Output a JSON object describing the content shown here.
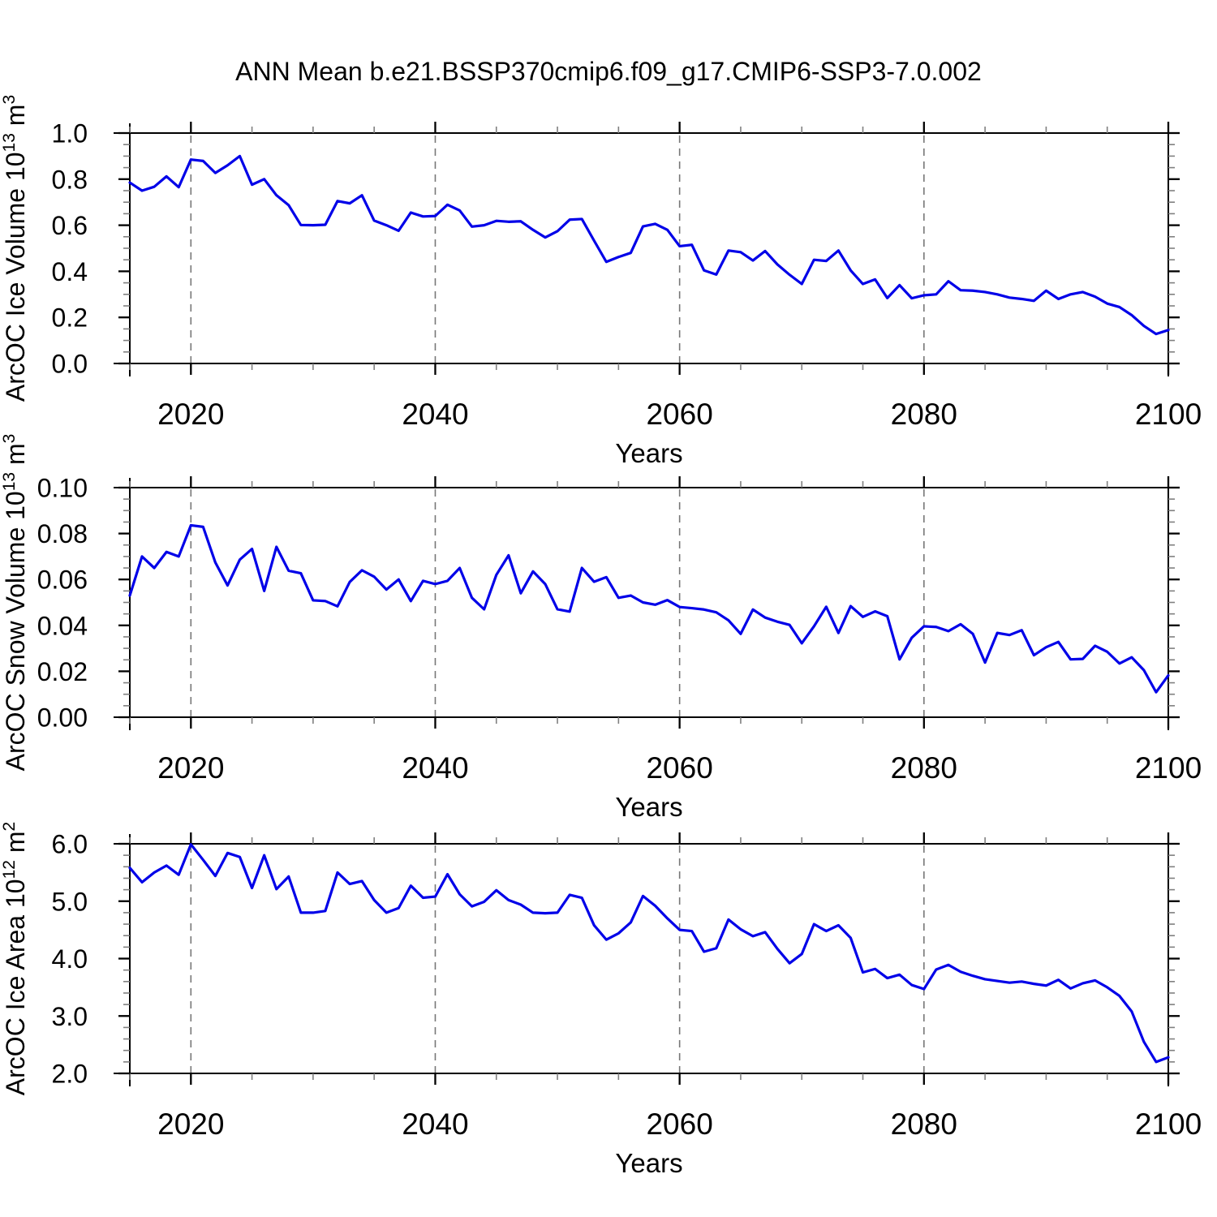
{
  "page": {
    "title": "ANN Mean b.e21.BSSP370cmip6.f09_g17.CMIP6-SSP3-7.0.002"
  },
  "style": {
    "background": "#ffffff",
    "axis_color": "#000000",
    "grid_color": "#777777",
    "line_color": "#0101e8",
    "minor_tick_color": "#808080",
    "label_color": "#000000"
  },
  "chart_data": [
    {
      "type": "line",
      "title": "",
      "xlabel": "Years",
      "ylabel": "ArcOC Ice Volume 10^13 m^3",
      "ylabel_parts": [
        [
          "t",
          "ArcOC Ice Volume 10"
        ],
        [
          "sup",
          "13"
        ],
        [
          "t",
          " m"
        ],
        [
          "sup",
          "3"
        ]
      ],
      "xlim": [
        2015,
        2100
      ],
      "x_start": 2015,
      "x_step": 1,
      "xticks": [
        2020,
        2040,
        2060,
        2080,
        2100
      ],
      "xtick_labels": [
        "2020",
        "2040",
        "2060",
        "2080",
        "2100"
      ],
      "x_minor_step": 5,
      "x_gridlines": [
        2020,
        2040,
        2060,
        2080
      ],
      "grid_style": "dashed",
      "legend": "none",
      "ylim": [
        0.0,
        1.0
      ],
      "yticks": [
        0.0,
        0.2,
        0.4,
        0.6,
        0.8,
        1.0
      ],
      "ytick_labels": [
        "0.0",
        "0.2",
        "0.4",
        "0.6",
        "0.8",
        "1.0"
      ],
      "y_minor_step": 0.05,
      "values": [
        0.785,
        0.75,
        0.767,
        0.812,
        0.765,
        0.885,
        0.879,
        0.827,
        0.86,
        0.9,
        0.776,
        0.8,
        0.73,
        0.687,
        0.601,
        0.6,
        0.602,
        0.705,
        0.695,
        0.73,
        0.62,
        0.6,
        0.576,
        0.655,
        0.638,
        0.64,
        0.689,
        0.664,
        0.594,
        0.6,
        0.619,
        0.615,
        0.617,
        0.58,
        0.547,
        0.574,
        0.624,
        0.627,
        0.533,
        0.441,
        0.462,
        0.48,
        0.595,
        0.606,
        0.58,
        0.509,
        0.515,
        0.404,
        0.386,
        0.49,
        0.483,
        0.447,
        0.488,
        0.43,
        0.385,
        0.345,
        0.45,
        0.445,
        0.49,
        0.404,
        0.345,
        0.365,
        0.284,
        0.34,
        0.283,
        0.296,
        0.3,
        0.357,
        0.318,
        0.316,
        0.31,
        0.3,
        0.286,
        0.28,
        0.272,
        0.316,
        0.28,
        0.3,
        0.31,
        0.29,
        0.26,
        0.245,
        0.21,
        0.163,
        0.128,
        0.145
      ]
    },
    {
      "type": "line",
      "title": "",
      "xlabel": "Years",
      "ylabel": "ArcOC Snow Volume 10^13 m^3",
      "ylabel_parts": [
        [
          "t",
          "ArcOC Snow Volume 10"
        ],
        [
          "sup",
          "13"
        ],
        [
          "t",
          " m"
        ],
        [
          "sup",
          "3"
        ]
      ],
      "xlim": [
        2015,
        2100
      ],
      "x_start": 2015,
      "x_step": 1,
      "xticks": [
        2020,
        2040,
        2060,
        2080,
        2100
      ],
      "xtick_labels": [
        "2020",
        "2040",
        "2060",
        "2080",
        "2100"
      ],
      "x_minor_step": 5,
      "x_gridlines": [
        2020,
        2040,
        2060,
        2080
      ],
      "grid_style": "dashed",
      "legend": "none",
      "ylim": [
        0.0,
        0.1
      ],
      "yticks": [
        0.0,
        0.02,
        0.04,
        0.06,
        0.08,
        0.1
      ],
      "ytick_labels": [
        "0.00",
        "0.02",
        "0.04",
        "0.06",
        "0.08",
        "0.10"
      ],
      "y_minor_step": 0.005,
      "values": [
        0.053,
        0.07,
        0.065,
        0.072,
        0.07,
        0.0836,
        0.0829,
        0.0674,
        0.0574,
        0.0686,
        0.0733,
        0.055,
        0.0742,
        0.0638,
        0.0627,
        0.0509,
        0.0506,
        0.0483,
        0.0589,
        0.064,
        0.0612,
        0.0556,
        0.06,
        0.0506,
        0.0594,
        0.058,
        0.0594,
        0.065,
        0.052,
        0.047,
        0.062,
        0.0705,
        0.054,
        0.0635,
        0.058,
        0.047,
        0.046,
        0.065,
        0.059,
        0.061,
        0.052,
        0.053,
        0.05,
        0.049,
        0.051,
        0.048,
        0.0475,
        0.0469,
        0.0457,
        0.0422,
        0.0363,
        0.0469,
        0.0434,
        0.0416,
        0.0402,
        0.0322,
        0.0396,
        0.0481,
        0.0367,
        0.0484,
        0.0437,
        0.0461,
        0.044,
        0.0252,
        0.0346,
        0.0396,
        0.0393,
        0.0375,
        0.0405,
        0.0363,
        0.0238,
        0.0367,
        0.0358,
        0.0379,
        0.027,
        0.0305,
        0.0328,
        0.0252,
        0.0254,
        0.0311,
        0.0285,
        0.0234,
        0.0261,
        0.0205,
        0.0109,
        0.0182
      ]
    },
    {
      "type": "line",
      "title": "",
      "xlabel": "Years",
      "ylabel": "ArcOC Ice Area 10^12 m^2",
      "ylabel_parts": [
        [
          "t",
          "ArcOC Ice Area 10"
        ],
        [
          "sup",
          "12"
        ],
        [
          "t",
          " m"
        ],
        [
          "sup",
          "2"
        ]
      ],
      "xlim": [
        2015,
        2100
      ],
      "x_start": 2015,
      "x_step": 1,
      "xticks": [
        2020,
        2040,
        2060,
        2080,
        2100
      ],
      "xtick_labels": [
        "2020",
        "2040",
        "2060",
        "2080",
        "2100"
      ],
      "x_minor_step": 5,
      "x_gridlines": [
        2020,
        2040,
        2060,
        2080
      ],
      "grid_style": "dashed",
      "legend": "none",
      "ylim": [
        2.0,
        6.0
      ],
      "yticks": [
        2.0,
        3.0,
        4.0,
        5.0,
        6.0
      ],
      "ytick_labels": [
        "2.0",
        "3.0",
        "4.0",
        "5.0",
        "6.0"
      ],
      "y_minor_step": 0.2,
      "values": [
        5.58,
        5.33,
        5.5,
        5.62,
        5.46,
        5.99,
        5.72,
        5.44,
        5.84,
        5.77,
        5.23,
        5.8,
        5.21,
        5.43,
        4.8,
        4.8,
        4.83,
        5.5,
        5.3,
        5.35,
        5.02,
        4.8,
        4.88,
        5.27,
        5.06,
        5.08,
        5.47,
        5.12,
        4.91,
        4.99,
        5.19,
        5.02,
        4.94,
        4.8,
        4.79,
        4.8,
        5.11,
        5.06,
        4.58,
        4.33,
        4.44,
        4.63,
        5.09,
        4.92,
        4.7,
        4.5,
        4.48,
        4.12,
        4.18,
        4.68,
        4.51,
        4.39,
        4.46,
        4.17,
        3.92,
        4.08,
        4.6,
        4.48,
        4.58,
        4.36,
        3.76,
        3.82,
        3.66,
        3.72,
        3.54,
        3.47,
        3.81,
        3.89,
        3.77,
        3.7,
        3.64,
        3.61,
        3.58,
        3.6,
        3.56,
        3.53,
        3.63,
        3.48,
        3.57,
        3.62,
        3.5,
        3.35,
        3.08,
        2.55,
        2.2,
        2.28
      ]
    }
  ]
}
